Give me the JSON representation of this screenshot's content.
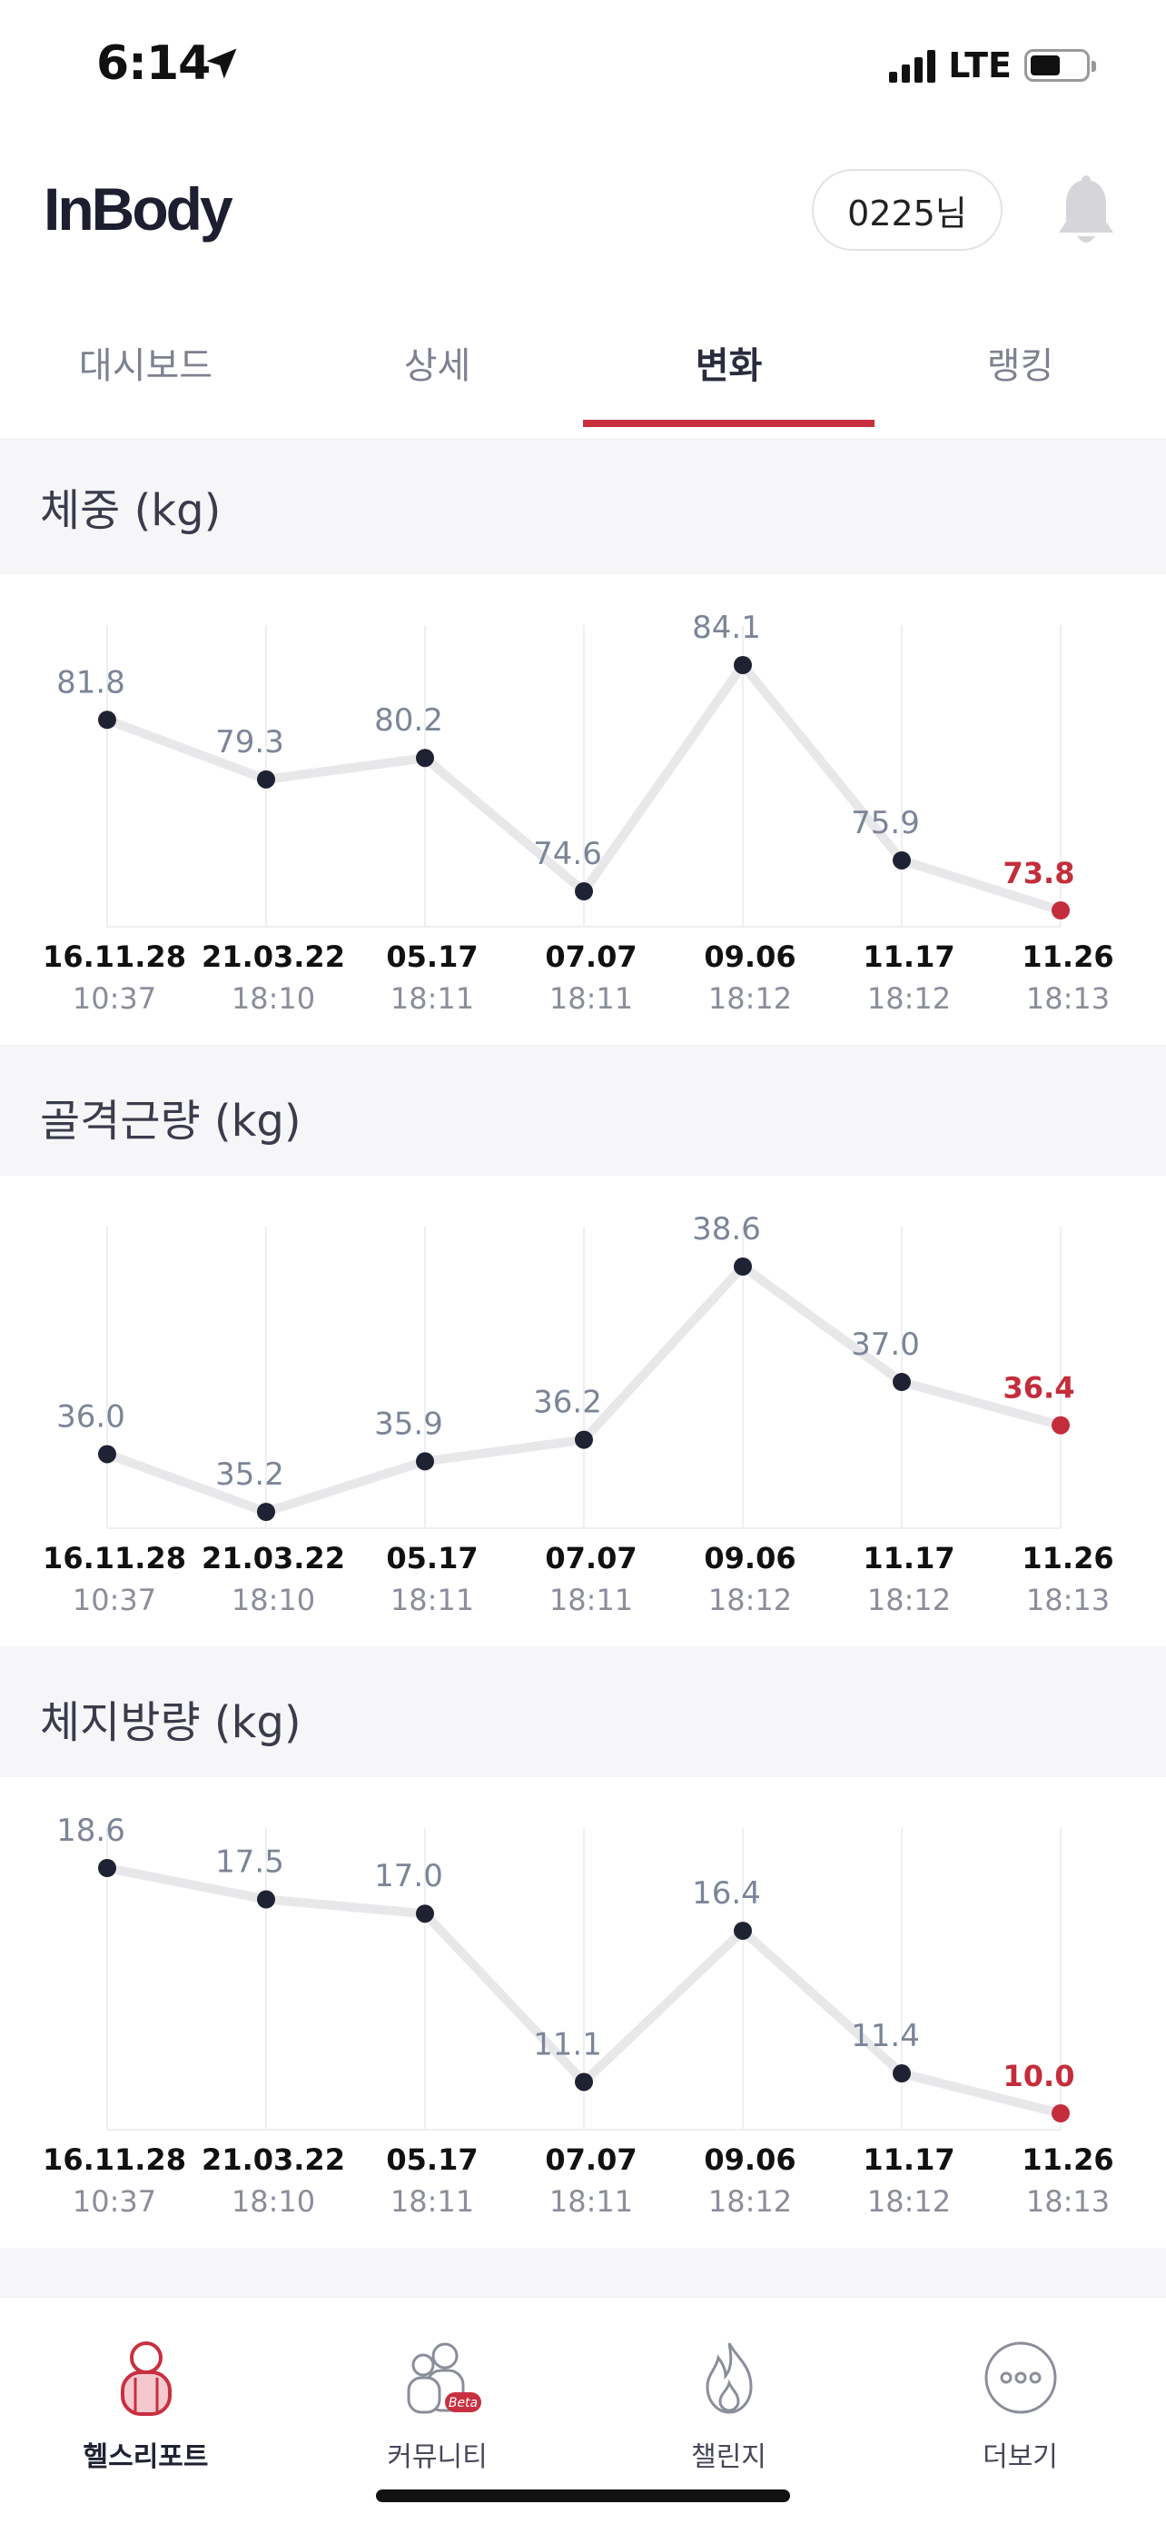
{
  "status_bar": {
    "time": "6:14",
    "network": "LTE"
  },
  "header": {
    "logo": "InBody",
    "user_label": "0225님"
  },
  "tabs": [
    {
      "label": "대시보드",
      "active": false
    },
    {
      "label": "상세",
      "active": false
    },
    {
      "label": "변화",
      "active": true
    },
    {
      "label": "랭킹",
      "active": false
    }
  ],
  "x_ticks": [
    {
      "date": "16.11.28",
      "time": "10:37"
    },
    {
      "date": "21.03.22",
      "time": "18:10"
    },
    {
      "date": "05.17",
      "time": "18:11"
    },
    {
      "date": "07.07",
      "time": "18:11"
    },
    {
      "date": "09.06",
      "time": "18:12"
    },
    {
      "date": "11.17",
      "time": "18:12"
    },
    {
      "date": "11.26",
      "time": "18:13"
    }
  ],
  "chart_data": [
    {
      "type": "line",
      "title": "체중 (kg)",
      "categories": [
        "16.11.28 10:37",
        "21.03.22 18:10",
        "05.17 18:11",
        "07.07 18:11",
        "09.06 18:12",
        "11.17 18:12",
        "11.26 18:13"
      ],
      "series": [
        {
          "values": [
            81.8,
            79.3,
            80.2,
            74.6,
            84.1,
            75.9,
            73.8
          ]
        }
      ],
      "highlight_last_color": "#c42d3b",
      "point_color": "#1f2233",
      "line_color": "#e8e8ea",
      "grid": true
    },
    {
      "type": "line",
      "title": "골격근량 (kg)",
      "categories": [
        "16.11.28 10:37",
        "21.03.22 18:10",
        "05.17 18:11",
        "07.07 18:11",
        "09.06 18:12",
        "11.17 18:12",
        "11.26 18:13"
      ],
      "series": [
        {
          "values": [
            36.0,
            35.2,
            35.9,
            36.2,
            38.6,
            37.0,
            36.4
          ]
        }
      ],
      "highlight_last_color": "#c42d3b",
      "point_color": "#1f2233",
      "line_color": "#e8e8ea",
      "grid": true
    },
    {
      "type": "line",
      "title": "체지방량 (kg)",
      "categories": [
        "16.11.28 10:37",
        "21.03.22 18:10",
        "05.17 18:11",
        "07.07 18:11",
        "09.06 18:12",
        "11.17 18:12",
        "11.26 18:13"
      ],
      "series": [
        {
          "values": [
            18.6,
            17.5,
            17.0,
            11.1,
            16.4,
            11.4,
            10.0
          ]
        }
      ],
      "highlight_last_color": "#c42d3b",
      "point_color": "#1f2233",
      "line_color": "#e8e8ea",
      "grid": true
    }
  ],
  "bottom_nav": [
    {
      "label": "헬스리포트",
      "icon": "health-report-icon",
      "active": true
    },
    {
      "label": "커뮤니티",
      "icon": "community-icon",
      "badge": "Beta",
      "active": false
    },
    {
      "label": "챌린지",
      "icon": "flame-icon",
      "active": false
    },
    {
      "label": "더보기",
      "icon": "more-icon",
      "active": false
    }
  ],
  "colors": {
    "accent": "#c8303f",
    "background_band": "#f6f6f8",
    "text_primary": "#1f2233"
  }
}
